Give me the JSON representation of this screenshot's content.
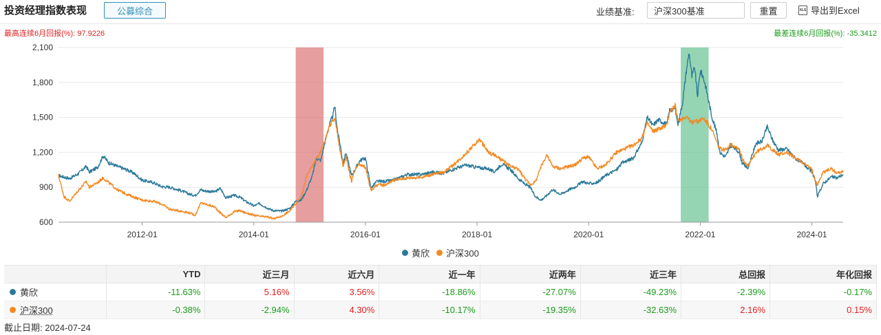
{
  "header": {
    "title": "投资经理指数表现",
    "tab_label": "公募综合",
    "benchmark_label": "业绩基准:",
    "benchmark_value": "沪深300基准",
    "reset_label": "重置",
    "export_icon_text": "XLS",
    "export_label": "导出到Excel"
  },
  "stats": {
    "best_6m": "最高连续6月回报(%): 97.9226",
    "worst_6m": "最差连续6月回报(%): -35.3412"
  },
  "colors": {
    "manager": "#2b7a99",
    "index": "#f28a23",
    "best_band": "#d96a6a",
    "worst_band": "#5cbf8a",
    "positive": "#e02020",
    "negative": "#1a9a1a"
  },
  "chart_data": {
    "type": "line",
    "x_range": [
      2010.5,
      2024.56
    ],
    "ylim": [
      600,
      2100
    ],
    "yticks": [
      600,
      900,
      1200,
      1500,
      1800,
      2100
    ],
    "ytick_labels": [
      "600",
      "900",
      "1,200",
      "1,500",
      "1,800",
      "2,100"
    ],
    "xticks": [
      2012.0,
      2014.0,
      2016.0,
      2018.0,
      2020.0,
      2022.0,
      2024.0
    ],
    "xtick_labels": [
      "2012-01",
      "2014-01",
      "2016-01",
      "2018-01",
      "2020-01",
      "2022-01",
      "2024-01"
    ],
    "grid": "horizontal",
    "legend_position": "bottom-center",
    "bands": [
      {
        "kind": "best",
        "start": 2014.75,
        "end": 2015.25
      },
      {
        "kind": "worst",
        "start": 2021.65,
        "end": 2022.15
      }
    ],
    "series": [
      {
        "name": "黄欣",
        "points": [
          [
            2010.5,
            1000
          ],
          [
            2010.7,
            975
          ],
          [
            2010.85,
            1015
          ],
          [
            2011.0,
            1080
          ],
          [
            2011.05,
            1030
          ],
          [
            2011.2,
            1070
          ],
          [
            2011.3,
            1170
          ],
          [
            2011.4,
            1110
          ],
          [
            2011.55,
            1080
          ],
          [
            2011.75,
            1045
          ],
          [
            2011.85,
            1020
          ],
          [
            2012.0,
            960
          ],
          [
            2012.2,
            940
          ],
          [
            2012.35,
            905
          ],
          [
            2012.5,
            900
          ],
          [
            2012.7,
            870
          ],
          [
            2012.85,
            840
          ],
          [
            2012.95,
            830
          ],
          [
            2013.05,
            880
          ],
          [
            2013.1,
            870
          ],
          [
            2013.3,
            860
          ],
          [
            2013.4,
            890
          ],
          [
            2013.5,
            810
          ],
          [
            2013.65,
            830
          ],
          [
            2013.75,
            815
          ],
          [
            2013.85,
            780
          ],
          [
            2014.0,
            740
          ],
          [
            2014.1,
            760
          ],
          [
            2014.25,
            720
          ],
          [
            2014.35,
            700
          ],
          [
            2014.5,
            695
          ],
          [
            2014.65,
            720
          ],
          [
            2014.75,
            780
          ],
          [
            2014.85,
            790
          ],
          [
            2014.95,
            880
          ],
          [
            2015.05,
            1000
          ],
          [
            2015.12,
            1150
          ],
          [
            2015.2,
            1130
          ],
          [
            2015.28,
            1300
          ],
          [
            2015.35,
            1430
          ],
          [
            2015.42,
            1520
          ],
          [
            2015.45,
            1600
          ],
          [
            2015.5,
            1380
          ],
          [
            2015.55,
            1260
          ],
          [
            2015.6,
            1100
          ],
          [
            2015.65,
            1200
          ],
          [
            2015.75,
            1000
          ],
          [
            2015.8,
            1040
          ],
          [
            2015.9,
            1130
          ],
          [
            2016.0,
            1150
          ],
          [
            2016.1,
            890
          ],
          [
            2016.2,
            950
          ],
          [
            2016.35,
            950
          ],
          [
            2016.5,
            960
          ],
          [
            2016.75,
            1010
          ],
          [
            2017.0,
            1010
          ],
          [
            2017.2,
            1030
          ],
          [
            2017.4,
            1020
          ],
          [
            2017.6,
            1060
          ],
          [
            2017.8,
            1090
          ],
          [
            2018.0,
            1070
          ],
          [
            2018.2,
            1060
          ],
          [
            2018.3,
            1030
          ],
          [
            2018.45,
            1100
          ],
          [
            2018.6,
            1050
          ],
          [
            2018.75,
            970
          ],
          [
            2018.85,
            930
          ],
          [
            2018.95,
            900
          ],
          [
            2019.05,
            820
          ],
          [
            2019.15,
            790
          ],
          [
            2019.25,
            830
          ],
          [
            2019.35,
            880
          ],
          [
            2019.5,
            840
          ],
          [
            2019.65,
            880
          ],
          [
            2019.75,
            900
          ],
          [
            2019.9,
            950
          ],
          [
            2020.0,
            930
          ],
          [
            2020.15,
            940
          ],
          [
            2020.3,
            1000
          ],
          [
            2020.5,
            1050
          ],
          [
            2020.6,
            1110
          ],
          [
            2020.8,
            1150
          ],
          [
            2020.95,
            1280
          ],
          [
            2021.05,
            1500
          ],
          [
            2021.15,
            1430
          ],
          [
            2021.25,
            1480
          ],
          [
            2021.4,
            1440
          ],
          [
            2021.45,
            1560
          ],
          [
            2021.55,
            1580
          ],
          [
            2021.6,
            1440
          ],
          [
            2021.68,
            1620
          ],
          [
            2021.75,
            1900
          ],
          [
            2021.8,
            2060
          ],
          [
            2021.85,
            1850
          ],
          [
            2021.9,
            1930
          ],
          [
            2021.95,
            1680
          ],
          [
            2022.0,
            1900
          ],
          [
            2022.05,
            1850
          ],
          [
            2022.1,
            1760
          ],
          [
            2022.2,
            1520
          ],
          [
            2022.3,
            1360
          ],
          [
            2022.35,
            1200
          ],
          [
            2022.45,
            1160
          ],
          [
            2022.55,
            1260
          ],
          [
            2022.7,
            1200
          ],
          [
            2022.75,
            1110
          ],
          [
            2022.85,
            1060
          ],
          [
            2023.0,
            1280
          ],
          [
            2023.1,
            1290
          ],
          [
            2023.2,
            1420
          ],
          [
            2023.3,
            1300
          ],
          [
            2023.4,
            1220
          ],
          [
            2023.55,
            1230
          ],
          [
            2023.7,
            1150
          ],
          [
            2023.85,
            1100
          ],
          [
            2024.0,
            1030
          ],
          [
            2024.05,
            980
          ],
          [
            2024.1,
            820
          ],
          [
            2024.2,
            930
          ],
          [
            2024.35,
            990
          ],
          [
            2024.45,
            980
          ],
          [
            2024.56,
            1010
          ]
        ]
      },
      {
        "name": "沪深300",
        "points": [
          [
            2010.5,
            1000
          ],
          [
            2010.6,
            820
          ],
          [
            2010.7,
            780
          ],
          [
            2010.85,
            870
          ],
          [
            2011.0,
            950
          ],
          [
            2011.05,
            900
          ],
          [
            2011.2,
            940
          ],
          [
            2011.3,
            980
          ],
          [
            2011.45,
            920
          ],
          [
            2011.55,
            880
          ],
          [
            2011.75,
            835
          ],
          [
            2011.85,
            815
          ],
          [
            2012.0,
            790
          ],
          [
            2012.2,
            780
          ],
          [
            2012.35,
            755
          ],
          [
            2012.5,
            710
          ],
          [
            2012.7,
            695
          ],
          [
            2012.85,
            680
          ],
          [
            2012.95,
            660
          ],
          [
            2013.05,
            765
          ],
          [
            2013.1,
            760
          ],
          [
            2013.3,
            730
          ],
          [
            2013.4,
            680
          ],
          [
            2013.5,
            640
          ],
          [
            2013.65,
            690
          ],
          [
            2013.75,
            700
          ],
          [
            2013.85,
            680
          ],
          [
            2014.0,
            660
          ],
          [
            2014.1,
            650
          ],
          [
            2014.25,
            645
          ],
          [
            2014.35,
            630
          ],
          [
            2014.5,
            650
          ],
          [
            2014.65,
            700
          ],
          [
            2014.75,
            760
          ],
          [
            2014.85,
            820
          ],
          [
            2014.95,
            1000
          ],
          [
            2015.05,
            1080
          ],
          [
            2015.12,
            1150
          ],
          [
            2015.2,
            1200
          ],
          [
            2015.28,
            1310
          ],
          [
            2015.35,
            1420
          ],
          [
            2015.42,
            1480
          ],
          [
            2015.45,
            1480
          ],
          [
            2015.5,
            1360
          ],
          [
            2015.55,
            1200
          ],
          [
            2015.6,
            1080
          ],
          [
            2015.65,
            1160
          ],
          [
            2015.75,
            950
          ],
          [
            2015.8,
            1040
          ],
          [
            2015.9,
            1100
          ],
          [
            2016.0,
            1070
          ],
          [
            2016.1,
            870
          ],
          [
            2016.2,
            920
          ],
          [
            2016.35,
            920
          ],
          [
            2016.5,
            960
          ],
          [
            2016.75,
            980
          ],
          [
            2017.0,
            985
          ],
          [
            2017.2,
            1010
          ],
          [
            2017.4,
            1030
          ],
          [
            2017.6,
            1100
          ],
          [
            2017.8,
            1190
          ],
          [
            2018.0,
            1290
          ],
          [
            2018.05,
            1310
          ],
          [
            2018.2,
            1200
          ],
          [
            2018.3,
            1180
          ],
          [
            2018.45,
            1130
          ],
          [
            2018.6,
            1080
          ],
          [
            2018.75,
            1050
          ],
          [
            2018.85,
            980
          ],
          [
            2018.95,
            920
          ],
          [
            2019.05,
            950
          ],
          [
            2019.15,
            1080
          ],
          [
            2019.25,
            1180
          ],
          [
            2019.35,
            1080
          ],
          [
            2019.5,
            1060
          ],
          [
            2019.65,
            1080
          ],
          [
            2019.75,
            1090
          ],
          [
            2019.9,
            1150
          ],
          [
            2020.0,
            1160
          ],
          [
            2020.15,
            1060
          ],
          [
            2020.3,
            1090
          ],
          [
            2020.5,
            1200
          ],
          [
            2020.6,
            1220
          ],
          [
            2020.8,
            1260
          ],
          [
            2020.95,
            1320
          ],
          [
            2021.05,
            1450
          ],
          [
            2021.15,
            1380
          ],
          [
            2021.25,
            1400
          ],
          [
            2021.4,
            1430
          ],
          [
            2021.45,
            1550
          ],
          [
            2021.55,
            1600
          ],
          [
            2021.6,
            1470
          ],
          [
            2021.68,
            1490
          ],
          [
            2021.75,
            1510
          ],
          [
            2021.8,
            1480
          ],
          [
            2021.85,
            1450
          ],
          [
            2021.9,
            1480
          ],
          [
            2021.95,
            1460
          ],
          [
            2022.0,
            1480
          ],
          [
            2022.05,
            1490
          ],
          [
            2022.1,
            1470
          ],
          [
            2022.2,
            1400
          ],
          [
            2022.3,
            1280
          ],
          [
            2022.35,
            1230
          ],
          [
            2022.45,
            1220
          ],
          [
            2022.55,
            1270
          ],
          [
            2022.7,
            1230
          ],
          [
            2022.75,
            1150
          ],
          [
            2022.85,
            1080
          ],
          [
            2023.0,
            1200
          ],
          [
            2023.1,
            1230
          ],
          [
            2023.2,
            1260
          ],
          [
            2023.3,
            1220
          ],
          [
            2023.4,
            1180
          ],
          [
            2023.55,
            1200
          ],
          [
            2023.7,
            1150
          ],
          [
            2023.85,
            1110
          ],
          [
            2024.0,
            1050
          ],
          [
            2024.05,
            980
          ],
          [
            2024.1,
            920
          ],
          [
            2024.2,
            1030
          ],
          [
            2024.35,
            1060
          ],
          [
            2024.45,
            1020
          ],
          [
            2024.56,
            1040
          ]
        ]
      }
    ]
  },
  "legend": {
    "manager": "黄欣",
    "index": "沪深300"
  },
  "table": {
    "headers": [
      "",
      "YTD",
      "近三月",
      "近六月",
      "近一年",
      "近两年",
      "近三年",
      "总回报",
      "年化回报"
    ],
    "rows": [
      {
        "name": "黄欣",
        "values": [
          "-11.63%",
          "5.16%",
          "3.56%",
          "-18.86%",
          "-27.07%",
          "-49.23%",
          "-2.39%",
          "-0.17%"
        ]
      },
      {
        "name": "沪深300",
        "values": [
          "-0.38%",
          "-2.94%",
          "4.30%",
          "-10.17%",
          "-19.35%",
          "-32.63%",
          "2.16%",
          "0.15%"
        ]
      }
    ]
  },
  "footer": {
    "as_of": "截止日期: 2024-07-24"
  }
}
